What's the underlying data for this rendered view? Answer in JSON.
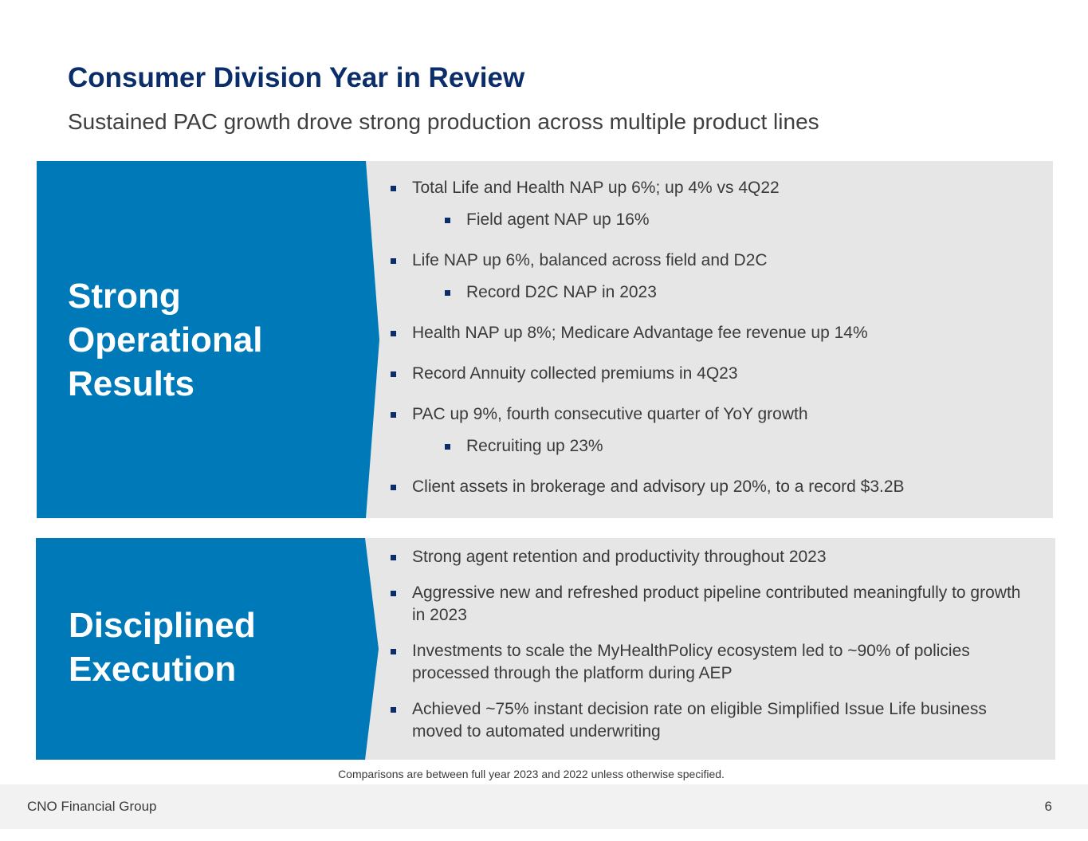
{
  "header": {
    "title": "Consumer Division Year in Review",
    "subtitle": "Sustained PAC growth drove strong production across multiple product lines"
  },
  "colors": {
    "title": "#0b2e6b",
    "panel_blue": "#0079b8",
    "panel_gray": "#e6e6e6",
    "bullet": "#0b2e6b"
  },
  "panels": [
    {
      "heading": [
        "Strong",
        "Operational",
        "Results"
      ],
      "bullets": [
        {
          "text": "Total Life and Health NAP up 6%; up 4% vs 4Q22",
          "level": 1
        },
        {
          "text": "Field agent NAP up 16%",
          "level": 2
        },
        {
          "text": "Life NAP up 6%, balanced across field and D2C",
          "level": 1
        },
        {
          "text": "Record D2C NAP in 2023",
          "level": 2
        },
        {
          "text": "Health NAP up 8%; Medicare Advantage fee revenue up 14%",
          "level": 1
        },
        {
          "text": "Record Annuity collected premiums in 4Q23",
          "level": 1
        },
        {
          "text": "PAC up 9%, fourth consecutive quarter of YoY growth",
          "level": 1
        },
        {
          "text": "Recruiting up 23%",
          "level": 2
        },
        {
          "text": "Client assets in brokerage and advisory up 20%, to a record $3.2B",
          "level": 1
        }
      ]
    },
    {
      "heading": [
        "Disciplined",
        "Execution"
      ],
      "bullets": [
        {
          "text": "Strong agent retention and productivity throughout 2023",
          "level": 1
        },
        {
          "text": "Aggressive new and refreshed product pipeline contributed meaningfully to growth in 2023",
          "level": 1
        },
        {
          "text": "Investments to scale the MyHealthPolicy ecosystem led to ~90% of policies processed through the platform during AEP",
          "level": 1
        },
        {
          "text": "Achieved ~75% instant decision rate on eligible Simplified Issue Life business moved to automated underwriting",
          "level": 1
        }
      ]
    }
  ],
  "footnote": "Comparisons are between full year 2023 and 2022 unless otherwise specified.",
  "footer": {
    "company": "CNO Financial Group",
    "page_number": "6"
  }
}
